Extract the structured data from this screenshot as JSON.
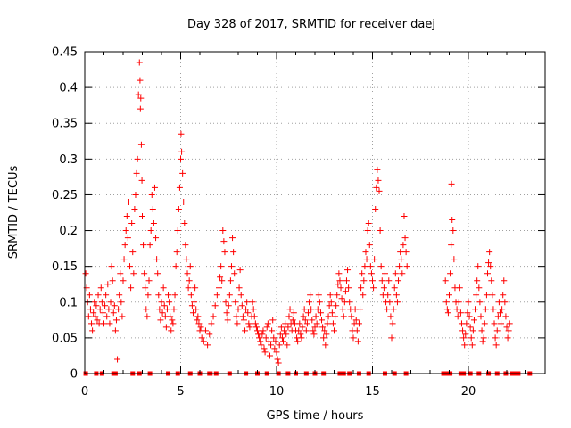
{
  "chart_data": {
    "type": "scatter",
    "title": "Day 328 of 2017, SRMTID for receiver daej",
    "xlabel": "GPS time / hours",
    "ylabel": "SRMTID / TECUs",
    "xlim": [
      0,
      24
    ],
    "ylim": [
      0,
      0.45
    ],
    "x_ticks": [
      0,
      5,
      10,
      15,
      20
    ],
    "x_tick_labels": [
      "0",
      "5",
      "10",
      "15",
      "20"
    ],
    "y_ticks": [
      0,
      0.05,
      0.1,
      0.15,
      0.2,
      0.25,
      0.3,
      0.35,
      0.4,
      0.45
    ],
    "y_tick_labels": [
      "0",
      "0.05",
      "0.1",
      "0.15",
      "0.2",
      "0.25",
      "0.3",
      "0.35",
      "0.4",
      "0.45"
    ],
    "grid": true,
    "series_color": "#ff0000",
    "marker": "plus",
    "points": [
      [
        0.05,
        0.14
      ],
      [
        0.1,
        0.12
      ],
      [
        0.15,
        0.1
      ],
      [
        0.2,
        0.08
      ],
      [
        0.25,
        0.11
      ],
      [
        0.3,
        0.09
      ],
      [
        0.35,
        0.07
      ],
      [
        0.4,
        0.06
      ],
      [
        0.45,
        0.085
      ],
      [
        0.5,
        0.1
      ],
      [
        0.55,
        0.08
      ],
      [
        0.6,
        0.095
      ],
      [
        0.65,
        0.075
      ],
      [
        0.7,
        0.11
      ],
      [
        0.75,
        0.07
      ],
      [
        0.8,
        0.09
      ],
      [
        0.85,
        0.12
      ],
      [
        0.9,
        0.1
      ],
      [
        0.95,
        0.085
      ],
      [
        1.0,
        0.07
      ],
      [
        1.05,
        0.095
      ],
      [
        1.1,
        0.11
      ],
      [
        1.15,
        0.08
      ],
      [
        1.2,
        0.125
      ],
      [
        1.25,
        0.09
      ],
      [
        1.3,
        0.07
      ],
      [
        1.35,
        0.1
      ],
      [
        1.4,
        0.15
      ],
      [
        1.45,
        0.13
      ],
      [
        1.5,
        0.085
      ],
      [
        1.55,
        0.095
      ],
      [
        1.6,
        0.06
      ],
      [
        1.65,
        0.075
      ],
      [
        1.7,
        0.02
      ],
      [
        1.75,
        0.09
      ],
      [
        1.8,
        0.11
      ],
      [
        1.85,
        0.14
      ],
      [
        1.9,
        0.1
      ],
      [
        1.95,
        0.08
      ],
      [
        2.0,
        0.13
      ],
      [
        2.05,
        0.16
      ],
      [
        2.1,
        0.18
      ],
      [
        2.15,
        0.2
      ],
      [
        2.2,
        0.22
      ],
      [
        2.25,
        0.19
      ],
      [
        2.3,
        0.24
      ],
      [
        2.35,
        0.15
      ],
      [
        2.4,
        0.12
      ],
      [
        2.45,
        0.21
      ],
      [
        2.5,
        0.17
      ],
      [
        2.55,
        0.14
      ],
      [
        2.6,
        0.23
      ],
      [
        2.65,
        0.25
      ],
      [
        2.7,
        0.28
      ],
      [
        2.75,
        0.3
      ],
      [
        2.8,
        0.39
      ],
      [
        2.85,
        0.435
      ],
      [
        2.88,
        0.41
      ],
      [
        2.9,
        0.37
      ],
      [
        2.92,
        0.385
      ],
      [
        2.95,
        0.32
      ],
      [
        2.98,
        0.27
      ],
      [
        3.0,
        0.22
      ],
      [
        3.05,
        0.18
      ],
      [
        3.1,
        0.14
      ],
      [
        3.15,
        0.12
      ],
      [
        3.2,
        0.09
      ],
      [
        3.25,
        0.08
      ],
      [
        3.3,
        0.11
      ],
      [
        3.35,
        0.13
      ],
      [
        3.4,
        0.18
      ],
      [
        3.45,
        0.2
      ],
      [
        3.5,
        0.25
      ],
      [
        3.55,
        0.23
      ],
      [
        3.6,
        0.21
      ],
      [
        3.65,
        0.26
      ],
      [
        3.7,
        0.19
      ],
      [
        3.75,
        0.16
      ],
      [
        3.8,
        0.14
      ],
      [
        3.85,
        0.11
      ],
      [
        3.9,
        0.09
      ],
      [
        3.95,
        0.075
      ],
      [
        4.0,
        0.1
      ],
      [
        4.05,
        0.085
      ],
      [
        4.1,
        0.12
      ],
      [
        4.15,
        0.095
      ],
      [
        4.2,
        0.08
      ],
      [
        4.25,
        0.065
      ],
      [
        4.3,
        0.09
      ],
      [
        4.35,
        0.11
      ],
      [
        4.4,
        0.1
      ],
      [
        4.45,
        0.08
      ],
      [
        4.5,
        0.06
      ],
      [
        4.55,
        0.075
      ],
      [
        4.6,
        0.07
      ],
      [
        4.65,
        0.09
      ],
      [
        4.7,
        0.11
      ],
      [
        4.75,
        0.15
      ],
      [
        4.8,
        0.17
      ],
      [
        4.85,
        0.2
      ],
      [
        4.9,
        0.23
      ],
      [
        4.95,
        0.26
      ],
      [
        5.0,
        0.3
      ],
      [
        5.02,
        0.335
      ],
      [
        5.05,
        0.31
      ],
      [
        5.1,
        0.28
      ],
      [
        5.15,
        0.24
      ],
      [
        5.2,
        0.21
      ],
      [
        5.25,
        0.18
      ],
      [
        5.3,
        0.16
      ],
      [
        5.35,
        0.14
      ],
      [
        5.4,
        0.12
      ],
      [
        5.45,
        0.13
      ],
      [
        5.5,
        0.15
      ],
      [
        5.55,
        0.11
      ],
      [
        5.6,
        0.095
      ],
      [
        5.65,
        0.085
      ],
      [
        5.7,
        0.1
      ],
      [
        5.75,
        0.12
      ],
      [
        5.8,
        0.09
      ],
      [
        5.85,
        0.075
      ],
      [
        5.9,
        0.08
      ],
      [
        5.95,
        0.07
      ],
      [
        6.0,
        0.06
      ],
      [
        6.05,
        0.065
      ],
      [
        6.1,
        0.05
      ],
      [
        6.2,
        0.045
      ],
      [
        6.3,
        0.06
      ],
      [
        6.4,
        0.04
      ],
      [
        6.5,
        0.055
      ],
      [
        6.6,
        0.07
      ],
      [
        6.7,
        0.08
      ],
      [
        6.8,
        0.095
      ],
      [
        6.9,
        0.11
      ],
      [
        7.0,
        0.12
      ],
      [
        7.05,
        0.135
      ],
      [
        7.1,
        0.15
      ],
      [
        7.15,
        0.13
      ],
      [
        7.2,
        0.2
      ],
      [
        7.25,
        0.185
      ],
      [
        7.3,
        0.17
      ],
      [
        7.35,
        0.1
      ],
      [
        7.4,
        0.085
      ],
      [
        7.45,
        0.075
      ],
      [
        7.5,
        0.095
      ],
      [
        7.55,
        0.11
      ],
      [
        7.6,
        0.13
      ],
      [
        7.65,
        0.15
      ],
      [
        7.7,
        0.19
      ],
      [
        7.75,
        0.17
      ],
      [
        7.8,
        0.14
      ],
      [
        7.85,
        0.1
      ],
      [
        7.9,
        0.08
      ],
      [
        7.95,
        0.07
      ],
      [
        8.0,
        0.09
      ],
      [
        8.05,
        0.12
      ],
      [
        8.1,
        0.145
      ],
      [
        8.15,
        0.11
      ],
      [
        8.2,
        0.095
      ],
      [
        8.25,
        0.08
      ],
      [
        8.3,
        0.075
      ],
      [
        8.35,
        0.06
      ],
      [
        8.4,
        0.09
      ],
      [
        8.45,
        0.1
      ],
      [
        8.5,
        0.085
      ],
      [
        8.55,
        0.07
      ],
      [
        8.6,
        0.065
      ],
      [
        8.7,
        0.08
      ],
      [
        8.75,
        0.1
      ],
      [
        8.8,
        0.09
      ],
      [
        8.85,
        0.08
      ],
      [
        8.9,
        0.07
      ],
      [
        8.95,
        0.065
      ],
      [
        9.0,
        0.06
      ],
      [
        9.05,
        0.055
      ],
      [
        9.1,
        0.05
      ],
      [
        9.15,
        0.045
      ],
      [
        9.2,
        0.04
      ],
      [
        9.25,
        0.055
      ],
      [
        9.3,
        0.06
      ],
      [
        9.35,
        0.035
      ],
      [
        9.4,
        0.03
      ],
      [
        9.45,
        0.05
      ],
      [
        9.5,
        0.065
      ],
      [
        9.55,
        0.07
      ],
      [
        9.6,
        0.045
      ],
      [
        9.65,
        0.025
      ],
      [
        9.7,
        0.04
      ],
      [
        9.75,
        0.06
      ],
      [
        9.8,
        0.075
      ],
      [
        9.85,
        0.05
      ],
      [
        9.9,
        0.035
      ],
      [
        9.95,
        0.045
      ],
      [
        10.0,
        0.03
      ],
      [
        10.05,
        0.02
      ],
      [
        10.1,
        0.015
      ],
      [
        10.15,
        0.04
      ],
      [
        10.2,
        0.055
      ],
      [
        10.25,
        0.065
      ],
      [
        10.3,
        0.05
      ],
      [
        10.35,
        0.045
      ],
      [
        10.4,
        0.06
      ],
      [
        10.45,
        0.07
      ],
      [
        10.5,
        0.055
      ],
      [
        10.55,
        0.04
      ],
      [
        10.6,
        0.065
      ],
      [
        10.65,
        0.08
      ],
      [
        10.7,
        0.09
      ],
      [
        10.75,
        0.07
      ],
      [
        10.8,
        0.06
      ],
      [
        10.85,
        0.075
      ],
      [
        10.9,
        0.085
      ],
      [
        10.95,
        0.07
      ],
      [
        11.0,
        0.06
      ],
      [
        11.05,
        0.05
      ],
      [
        11.1,
        0.045
      ],
      [
        11.15,
        0.06
      ],
      [
        11.2,
        0.07
      ],
      [
        11.25,
        0.055
      ],
      [
        11.3,
        0.05
      ],
      [
        11.35,
        0.065
      ],
      [
        11.4,
        0.08
      ],
      [
        11.45,
        0.09
      ],
      [
        11.5,
        0.075
      ],
      [
        11.55,
        0.06
      ],
      [
        11.6,
        0.07
      ],
      [
        11.65,
        0.085
      ],
      [
        11.7,
        0.1
      ],
      [
        11.75,
        0.11
      ],
      [
        11.8,
        0.09
      ],
      [
        11.85,
        0.075
      ],
      [
        11.9,
        0.06
      ],
      [
        11.95,
        0.055
      ],
      [
        12.0,
        0.065
      ],
      [
        12.05,
        0.08
      ],
      [
        12.1,
        0.07
      ],
      [
        12.15,
        0.09
      ],
      [
        12.2,
        0.11
      ],
      [
        12.25,
        0.1
      ],
      [
        12.3,
        0.085
      ],
      [
        12.35,
        0.075
      ],
      [
        12.4,
        0.065
      ],
      [
        12.45,
        0.05
      ],
      [
        12.5,
        0.06
      ],
      [
        12.55,
        0.04
      ],
      [
        12.6,
        0.055
      ],
      [
        12.65,
        0.07
      ],
      [
        12.7,
        0.08
      ],
      [
        12.75,
        0.095
      ],
      [
        12.8,
        0.11
      ],
      [
        12.85,
        0.1
      ],
      [
        12.9,
        0.085
      ],
      [
        12.95,
        0.07
      ],
      [
        13.0,
        0.06
      ],
      [
        13.05,
        0.08
      ],
      [
        13.1,
        0.095
      ],
      [
        13.15,
        0.11
      ],
      [
        13.2,
        0.125
      ],
      [
        13.25,
        0.14
      ],
      [
        13.3,
        0.13
      ],
      [
        13.35,
        0.12
      ],
      [
        13.4,
        0.105
      ],
      [
        13.45,
        0.09
      ],
      [
        13.5,
        0.08
      ],
      [
        13.55,
        0.1
      ],
      [
        13.6,
        0.115
      ],
      [
        13.65,
        0.13
      ],
      [
        13.7,
        0.145
      ],
      [
        13.75,
        0.12
      ],
      [
        13.8,
        0.1
      ],
      [
        13.85,
        0.09
      ],
      [
        13.9,
        0.08
      ],
      [
        13.95,
        0.06
      ],
      [
        14.0,
        0.05
      ],
      [
        14.05,
        0.07
      ],
      [
        14.1,
        0.09
      ],
      [
        14.15,
        0.075
      ],
      [
        14.2,
        0.06
      ],
      [
        14.25,
        0.045
      ],
      [
        14.3,
        0.07
      ],
      [
        14.35,
        0.09
      ],
      [
        14.4,
        0.12
      ],
      [
        14.45,
        0.14
      ],
      [
        14.5,
        0.11
      ],
      [
        14.55,
        0.13
      ],
      [
        14.6,
        0.15
      ],
      [
        14.65,
        0.17
      ],
      [
        14.7,
        0.16
      ],
      [
        14.75,
        0.2
      ],
      [
        14.8,
        0.21
      ],
      [
        14.85,
        0.18
      ],
      [
        14.9,
        0.15
      ],
      [
        14.95,
        0.14
      ],
      [
        15.0,
        0.13
      ],
      [
        15.05,
        0.12
      ],
      [
        15.1,
        0.16
      ],
      [
        15.15,
        0.23
      ],
      [
        15.2,
        0.26
      ],
      [
        15.25,
        0.285
      ],
      [
        15.3,
        0.27
      ],
      [
        15.35,
        0.255
      ],
      [
        15.4,
        0.2
      ],
      [
        15.45,
        0.15
      ],
      [
        15.5,
        0.13
      ],
      [
        15.55,
        0.11
      ],
      [
        15.6,
        0.12
      ],
      [
        15.65,
        0.14
      ],
      [
        15.7,
        0.1
      ],
      [
        15.75,
        0.09
      ],
      [
        15.8,
        0.11
      ],
      [
        15.85,
        0.13
      ],
      [
        15.9,
        0.1
      ],
      [
        15.95,
        0.08
      ],
      [
        16.0,
        0.05
      ],
      [
        16.05,
        0.07
      ],
      [
        16.1,
        0.09
      ],
      [
        16.15,
        0.12
      ],
      [
        16.2,
        0.14
      ],
      [
        16.25,
        0.11
      ],
      [
        16.3,
        0.1
      ],
      [
        16.35,
        0.13
      ],
      [
        16.4,
        0.15
      ],
      [
        16.45,
        0.17
      ],
      [
        16.5,
        0.16
      ],
      [
        16.55,
        0.14
      ],
      [
        16.6,
        0.18
      ],
      [
        16.65,
        0.22
      ],
      [
        16.7,
        0.19
      ],
      [
        16.75,
        0.17
      ],
      [
        16.8,
        0.15
      ],
      [
        18.8,
        0.13
      ],
      [
        18.85,
        0.1
      ],
      [
        18.9,
        0.09
      ],
      [
        18.95,
        0.085
      ],
      [
        19.0,
        0.11
      ],
      [
        19.05,
        0.14
      ],
      [
        19.1,
        0.18
      ],
      [
        19.12,
        0.265
      ],
      [
        19.15,
        0.215
      ],
      [
        19.2,
        0.2
      ],
      [
        19.25,
        0.16
      ],
      [
        19.3,
        0.12
      ],
      [
        19.35,
        0.1
      ],
      [
        19.4,
        0.09
      ],
      [
        19.45,
        0.08
      ],
      [
        19.5,
        0.1
      ],
      [
        19.55,
        0.12
      ],
      [
        19.6,
        0.085
      ],
      [
        19.65,
        0.07
      ],
      [
        19.7,
        0.06
      ],
      [
        19.75,
        0.05
      ],
      [
        19.8,
        0.04
      ],
      [
        19.85,
        0.055
      ],
      [
        19.9,
        0.07
      ],
      [
        19.95,
        0.085
      ],
      [
        20.0,
        0.1
      ],
      [
        20.05,
        0.08
      ],
      [
        20.1,
        0.065
      ],
      [
        20.15,
        0.05
      ],
      [
        20.2,
        0.04
      ],
      [
        20.25,
        0.06
      ],
      [
        20.3,
        0.075
      ],
      [
        20.35,
        0.09
      ],
      [
        20.4,
        0.11
      ],
      [
        20.45,
        0.13
      ],
      [
        20.5,
        0.15
      ],
      [
        20.55,
        0.12
      ],
      [
        20.6,
        0.1
      ],
      [
        20.65,
        0.08
      ],
      [
        20.7,
        0.06
      ],
      [
        20.75,
        0.045
      ],
      [
        20.8,
        0.05
      ],
      [
        20.85,
        0.07
      ],
      [
        20.9,
        0.09
      ],
      [
        20.95,
        0.11
      ],
      [
        21.0,
        0.14
      ],
      [
        21.05,
        0.155
      ],
      [
        21.1,
        0.17
      ],
      [
        21.15,
        0.15
      ],
      [
        21.2,
        0.13
      ],
      [
        21.25,
        0.11
      ],
      [
        21.3,
        0.09
      ],
      [
        21.35,
        0.07
      ],
      [
        21.4,
        0.05
      ],
      [
        21.45,
        0.04
      ],
      [
        21.5,
        0.06
      ],
      [
        21.55,
        0.08
      ],
      [
        21.6,
        0.1
      ],
      [
        21.65,
        0.085
      ],
      [
        21.7,
        0.07
      ],
      [
        21.75,
        0.09
      ],
      [
        21.8,
        0.11
      ],
      [
        21.85,
        0.13
      ],
      [
        21.9,
        0.1
      ],
      [
        21.95,
        0.08
      ],
      [
        22.0,
        0.065
      ],
      [
        22.05,
        0.05
      ],
      [
        22.1,
        0.06
      ],
      [
        22.15,
        0.07
      ]
    ],
    "zero_markers_x": [
      0.05,
      0.6,
      0.9,
      1.5,
      1.6,
      2.5,
      2.85,
      3.4,
      4.35,
      4.85,
      5.5,
      6.0,
      6.5,
      6.55,
      6.85,
      7.55,
      8.4,
      9.0,
      9.5,
      10.1,
      10.6,
      11.0,
      11.55,
      12.0,
      12.45,
      13.3,
      13.5,
      13.8,
      14.3,
      14.8,
      15.65,
      16.15,
      16.75,
      18.7,
      18.85,
      19.05,
      19.6,
      19.75,
      20.1,
      20.55,
      21.05,
      21.5,
      21.95,
      22.3,
      22.45,
      22.6,
      23.2
    ]
  }
}
